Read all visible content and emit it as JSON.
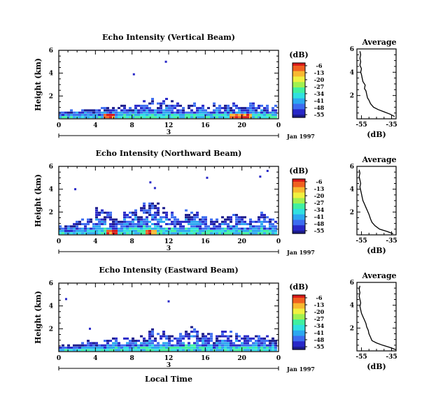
{
  "colors": {
    "scale": [
      "#1c1c8c",
      "#2828c8",
      "#3c6cf0",
      "#2ca8f0",
      "#30e0e0",
      "#40f0a0",
      "#a0f050",
      "#f0f040",
      "#f8b830",
      "#f06020",
      "#d81818"
    ],
    "axis": "#000000",
    "profile_line": "#000000"
  },
  "chart_data": [
    {
      "type": "heatmap",
      "title": "Echo Intensity (Vertical Beam)",
      "ylabel": "Height (km)",
      "xlabel": "",
      "x_ticks": [
        "0",
        "4",
        "8",
        "12",
        "16",
        "20",
        "0"
      ],
      "y_ticks": [
        "2",
        "4",
        "6"
      ],
      "xlim": [
        0,
        24
      ],
      "ylim": [
        0,
        6
      ],
      "date_axis": {
        "day_label": "3",
        "date_label": "Jan 1997"
      },
      "colorbar": {
        "unit": "(dB)",
        "ticks": [
          "-6",
          "-13",
          "-20",
          "-27",
          "-34",
          "-41",
          "-48",
          "-55"
        ],
        "range": [
          -55,
          -6
        ]
      },
      "echo_top_km": [
        0.6,
        0.65,
        0.7,
        0.75,
        0.8,
        0.9,
        1.0,
        1.05,
        1.1,
        1.3,
        1.5,
        1.4,
        1.3,
        1.2,
        1.25,
        1.1,
        1.0,
        1.15,
        1.2,
        1.25,
        1.1,
        1.2,
        1.15,
        1.2
      ],
      "strong_echo_hours": [
        5.5,
        19.5,
        20.5
      ],
      "isolated_points": [
        {
          "hour": 8.2,
          "km": 3.9
        },
        {
          "hour": 11.7,
          "km": 5.0
        }
      ]
    },
    {
      "type": "heatmap",
      "title": "Echo Intensity (Northward Beam)",
      "ylabel": "Height (km)",
      "xlabel": "",
      "x_ticks": [
        "0",
        "4",
        "8",
        "12",
        "16",
        "20",
        "0"
      ],
      "y_ticks": [
        "2",
        "4",
        "6"
      ],
      "xlim": [
        0,
        24
      ],
      "ylim": [
        0,
        6
      ],
      "date_axis": {
        "day_label": "3",
        "date_label": "Jan 1997"
      },
      "colorbar": {
        "unit": "(dB)",
        "ticks": [
          "-6",
          "-13",
          "-20",
          "-27",
          "-34",
          "-41",
          "-48",
          "-55"
        ],
        "range": [
          -55,
          -6
        ]
      },
      "echo_top_km": [
        0.6,
        0.9,
        1.1,
        1.6,
        2.2,
        1.8,
        1.3,
        1.9,
        2.2,
        2.3,
        2.6,
        2.1,
        1.7,
        1.3,
        1.8,
        1.6,
        1.5,
        1.2,
        1.7,
        1.6,
        1.4,
        1.3,
        1.9,
        1.5
      ],
      "strong_echo_hours": [
        5.8,
        10.2
      ],
      "isolated_points": [
        {
          "hour": 1.8,
          "km": 4.0
        },
        {
          "hour": 10.0,
          "km": 4.6
        },
        {
          "hour": 10.5,
          "km": 4.1
        },
        {
          "hour": 16.2,
          "km": 5.0
        },
        {
          "hour": 22.0,
          "km": 5.1
        },
        {
          "hour": 22.8,
          "km": 5.6
        }
      ]
    },
    {
      "type": "heatmap",
      "title": "Echo Intensity (Eastward Beam)",
      "ylabel": "Height (km)",
      "xlabel": "Local Time",
      "x_ticks": [
        "0",
        "4",
        "8",
        "12",
        "16",
        "20",
        "0"
      ],
      "y_ticks": [
        "2",
        "4",
        "6"
      ],
      "xlim": [
        0,
        24
      ],
      "ylim": [
        0,
        6
      ],
      "date_axis": {
        "day_label": "3",
        "date_label": "Jan 1997"
      },
      "colorbar": {
        "unit": "(dB)",
        "ticks": [
          "-6",
          "-13",
          "-20",
          "-27",
          "-34",
          "-41",
          "-48",
          "-55"
        ],
        "range": [
          -55,
          -6
        ]
      },
      "echo_top_km": [
        0.4,
        0.5,
        0.6,
        0.8,
        0.7,
        0.9,
        1.0,
        1.1,
        1.2,
        1.3,
        1.8,
        1.6,
        1.2,
        1.3,
        1.8,
        1.5,
        1.3,
        1.2,
        1.4,
        1.3,
        1.1,
        1.2,
        1.1,
        1.0
      ],
      "strong_echo_hours": [],
      "isolated_points": [
        {
          "hour": 0.8,
          "km": 4.6
        },
        {
          "hour": 12.0,
          "km": 4.4
        },
        {
          "hour": 3.4,
          "km": 2.0
        }
      ]
    }
  ],
  "profiles": [
    {
      "title": "Average",
      "xlabel": "(dB)",
      "x_ticks": [
        "-55",
        "-35"
      ],
      "y_ticks": [
        "2",
        "4",
        "6"
      ],
      "xlim": [
        -58,
        -32
      ],
      "ylim": [
        0,
        6
      ],
      "points": [
        [
          -33,
          0.2
        ],
        [
          -36,
          0.4
        ],
        [
          -40,
          0.6
        ],
        [
          -44,
          0.8
        ],
        [
          -47,
          1.0
        ],
        [
          -49,
          1.3
        ],
        [
          -50,
          1.6
        ],
        [
          -51,
          1.8
        ],
        [
          -51.5,
          2.1
        ],
        [
          -52,
          2.4
        ],
        [
          -53,
          2.6
        ],
        [
          -52.5,
          2.9
        ],
        [
          -54,
          3.2
        ],
        [
          -54.5,
          3.5
        ],
        [
          -55,
          3.8
        ],
        [
          -55.5,
          4.0
        ],
        [
          -55,
          4.3
        ],
        [
          -56,
          4.6
        ],
        [
          -55.5,
          4.9
        ],
        [
          -56,
          5.2
        ],
        [
          -55.5,
          5.5
        ],
        [
          -56,
          5.8
        ]
      ]
    },
    {
      "title": "Average",
      "xlabel": "(dB)",
      "x_ticks": [
        "-55",
        "-35"
      ],
      "y_ticks": [
        "2",
        "4",
        "6"
      ],
      "xlim": [
        -58,
        -32
      ],
      "ylim": [
        0,
        6
      ],
      "points": [
        [
          -34,
          0.1
        ],
        [
          -38,
          0.3
        ],
        [
          -43,
          0.5
        ],
        [
          -46,
          0.8
        ],
        [
          -48,
          1.1
        ],
        [
          -49,
          1.4
        ],
        [
          -50,
          1.8
        ],
        [
          -51,
          2.1
        ],
        [
          -52,
          2.4
        ],
        [
          -53,
          2.7
        ],
        [
          -54,
          3.0
        ],
        [
          -54.5,
          3.3
        ],
        [
          -55,
          3.6
        ],
        [
          -55.5,
          3.9
        ],
        [
          -56,
          4.2
        ],
        [
          -55.5,
          4.5
        ],
        [
          -56,
          4.8
        ],
        [
          -56.5,
          5.1
        ],
        [
          -56,
          5.4
        ],
        [
          -56.5,
          5.7
        ]
      ]
    },
    {
      "title": "Average",
      "xlabel": "(dB)",
      "x_ticks": [
        "-55",
        "-35"
      ],
      "y_ticks": [
        "2",
        "4",
        "6"
      ],
      "xlim": [
        -58,
        -32
      ],
      "ylim": [
        0,
        6
      ],
      "points": [
        [
          -32,
          0.1
        ],
        [
          -36,
          0.3
        ],
        [
          -41,
          0.5
        ],
        [
          -45,
          0.7
        ],
        [
          -48,
          0.9
        ],
        [
          -49,
          1.2
        ],
        [
          -50,
          1.5
        ],
        [
          -50.5,
          1.8
        ],
        [
          -51.5,
          2.1
        ],
        [
          -52,
          2.4
        ],
        [
          -53,
          2.7
        ],
        [
          -54,
          3.0
        ],
        [
          -55,
          3.3
        ],
        [
          -55.5,
          3.6
        ],
        [
          -56,
          3.9
        ],
        [
          -55.5,
          4.2
        ],
        [
          -56,
          4.5
        ],
        [
          -56.5,
          4.8
        ],
        [
          -56,
          5.1
        ],
        [
          -56.5,
          5.4
        ],
        [
          -56,
          5.7
        ]
      ]
    }
  ]
}
